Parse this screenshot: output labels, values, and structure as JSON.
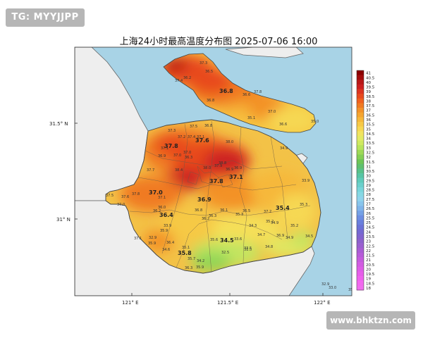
{
  "title": "上海24小时最高温度分布图 2025-07-06 16:00",
  "watermarks": {
    "top": "TG: MYYJJPP",
    "bottom": "www.bhktzn.com"
  },
  "colors": {
    "sea": "#a8d3e6",
    "land_outside": "#eeeeee",
    "border": "#555555"
  },
  "axes": {
    "lat_labels": [
      "31.5° N",
      "31° N"
    ],
    "lon_labels": [
      "121° E",
      "121.5° E",
      "122° E"
    ]
  },
  "legend": {
    "ticks": [
      "41",
      "40.5",
      "40",
      "39.5",
      "39",
      "38.5",
      "38",
      "37.5",
      "37",
      "36.5",
      "36",
      "35.5",
      "35",
      "34.5",
      "34",
      "33.5",
      "33",
      "32.5",
      "32",
      "31.5",
      "31",
      "30.5",
      "30",
      "29.5",
      "29",
      "28.5",
      "28",
      "27.5",
      "27",
      "26.5",
      "26",
      "25.5",
      "25",
      "24.5",
      "24",
      "23.5",
      "23",
      "22.5",
      "22",
      "21.5",
      "21",
      "20.5",
      "20",
      "19.5",
      "19",
      "18.5",
      "18"
    ],
    "colors": [
      "#8b0000",
      "#a30d0d",
      "#b81818",
      "#cc2020",
      "#dc3520",
      "#e84a1e",
      "#f0611e",
      "#f07a22",
      "#f39228",
      "#f5a530",
      "#f6b83a",
      "#f7c946",
      "#f6d853",
      "#f1e460",
      "#e3ea63",
      "#cfe960",
      "#b8e45c",
      "#9ed957",
      "#84cf55",
      "#6dc556",
      "#5ec06e",
      "#58c18a",
      "#57c5a4",
      "#5fcbba",
      "#6bd0cc",
      "#78d5da",
      "#86d8e4",
      "#8fd3ec",
      "#88c5ec",
      "#7fb4ea",
      "#74a1e6",
      "#6c8ee3",
      "#6a7fdd",
      "#6b72d7",
      "#7569d2",
      "#8164cf",
      "#8d61cc",
      "#9a5fd0",
      "#a95dd4",
      "#b75cd9",
      "#c55cdd",
      "#d25ce2",
      "#dd5de6",
      "#e75eea",
      "#ee62ed",
      "#f267ef",
      "#f06dee"
    ]
  },
  "big_labels": [
    {
      "text": "36.8"
    },
    {
      "text": "37.8"
    },
    {
      "text": "37.6"
    },
    {
      "text": "37.1"
    },
    {
      "text": "37.8"
    },
    {
      "text": "36.9"
    },
    {
      "text": "37.0"
    },
    {
      "text": "36.4"
    },
    {
      "text": "35.4"
    },
    {
      "text": "34.5"
    },
    {
      "text": "35.8"
    }
  ],
  "small_labels": [
    "37.3",
    "36.5",
    "36.2",
    "37.4",
    "37.8",
    "35.1",
    "37.0",
    "36.6",
    "35.0",
    "36.6",
    "36.8",
    "36.8",
    "37.5",
    "37.3",
    "37.2",
    "37.4",
    "34.9",
    "37.1",
    "38.0",
    "38.4",
    "37.7",
    "36.9",
    "36.3",
    "37.1",
    "37.0",
    "37.0",
    "37.9",
    "36.9",
    "38.8",
    "36.9",
    "38.0",
    "35.3",
    "37.5",
    "37.6",
    "37.8",
    "37.0",
    "37.1",
    "36.2",
    "36.8",
    "36.0",
    "35.2",
    "36.5",
    "35.9",
    "36.4",
    "37.2",
    "35.3",
    "36.1",
    "34.9",
    "34.3",
    "34.7",
    "36.9",
    "33.9",
    "35.2",
    "34.5",
    "33.5",
    "32.5",
    "31.5",
    "34.8",
    "33.6",
    "34.9",
    "35.6",
    "35.1",
    "36.3",
    "35.7",
    "35.9",
    "37.1",
    "32.9",
    "33.0",
    "34.2",
    "35.5",
    "32.9",
    "33.9",
    "35.9",
    "34.6",
    "36.2",
    "36.3",
    "36.0"
  ]
}
